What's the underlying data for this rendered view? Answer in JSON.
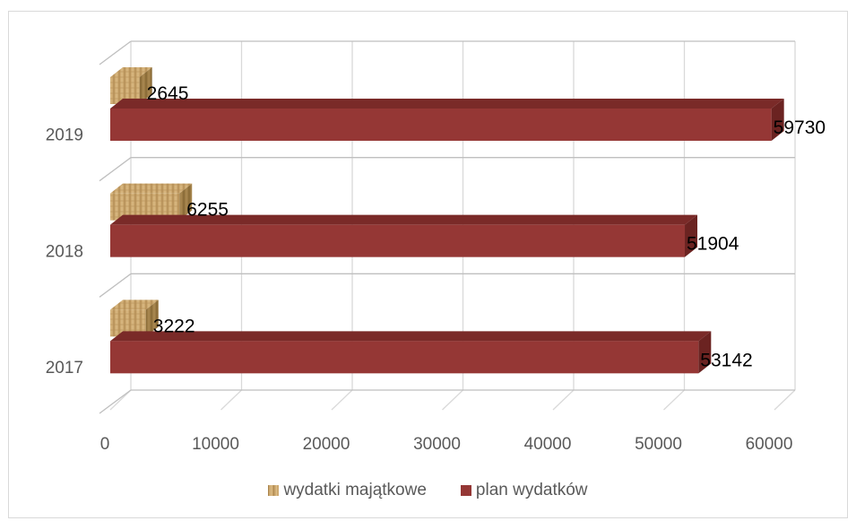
{
  "chart_data": {
    "type": "bar",
    "orientation": "horizontal",
    "three_d": true,
    "categories": [
      "2017",
      "2018",
      "2019"
    ],
    "series": [
      {
        "name": "wydatki majątkowe",
        "values": [
          3222,
          6255,
          2645
        ],
        "color": "#C8A46A",
        "texture": "wood"
      },
      {
        "name": "plan wydatków",
        "values": [
          53142,
          51904,
          59730
        ],
        "color": "#953735"
      }
    ],
    "xlim": [
      0,
      60000
    ],
    "xticks": [
      "0",
      "10000",
      "20000",
      "30000",
      "40000",
      "50000",
      "60000"
    ],
    "grid": true,
    "legend_position": "bottom",
    "title": "",
    "xlabel": "",
    "ylabel": ""
  }
}
